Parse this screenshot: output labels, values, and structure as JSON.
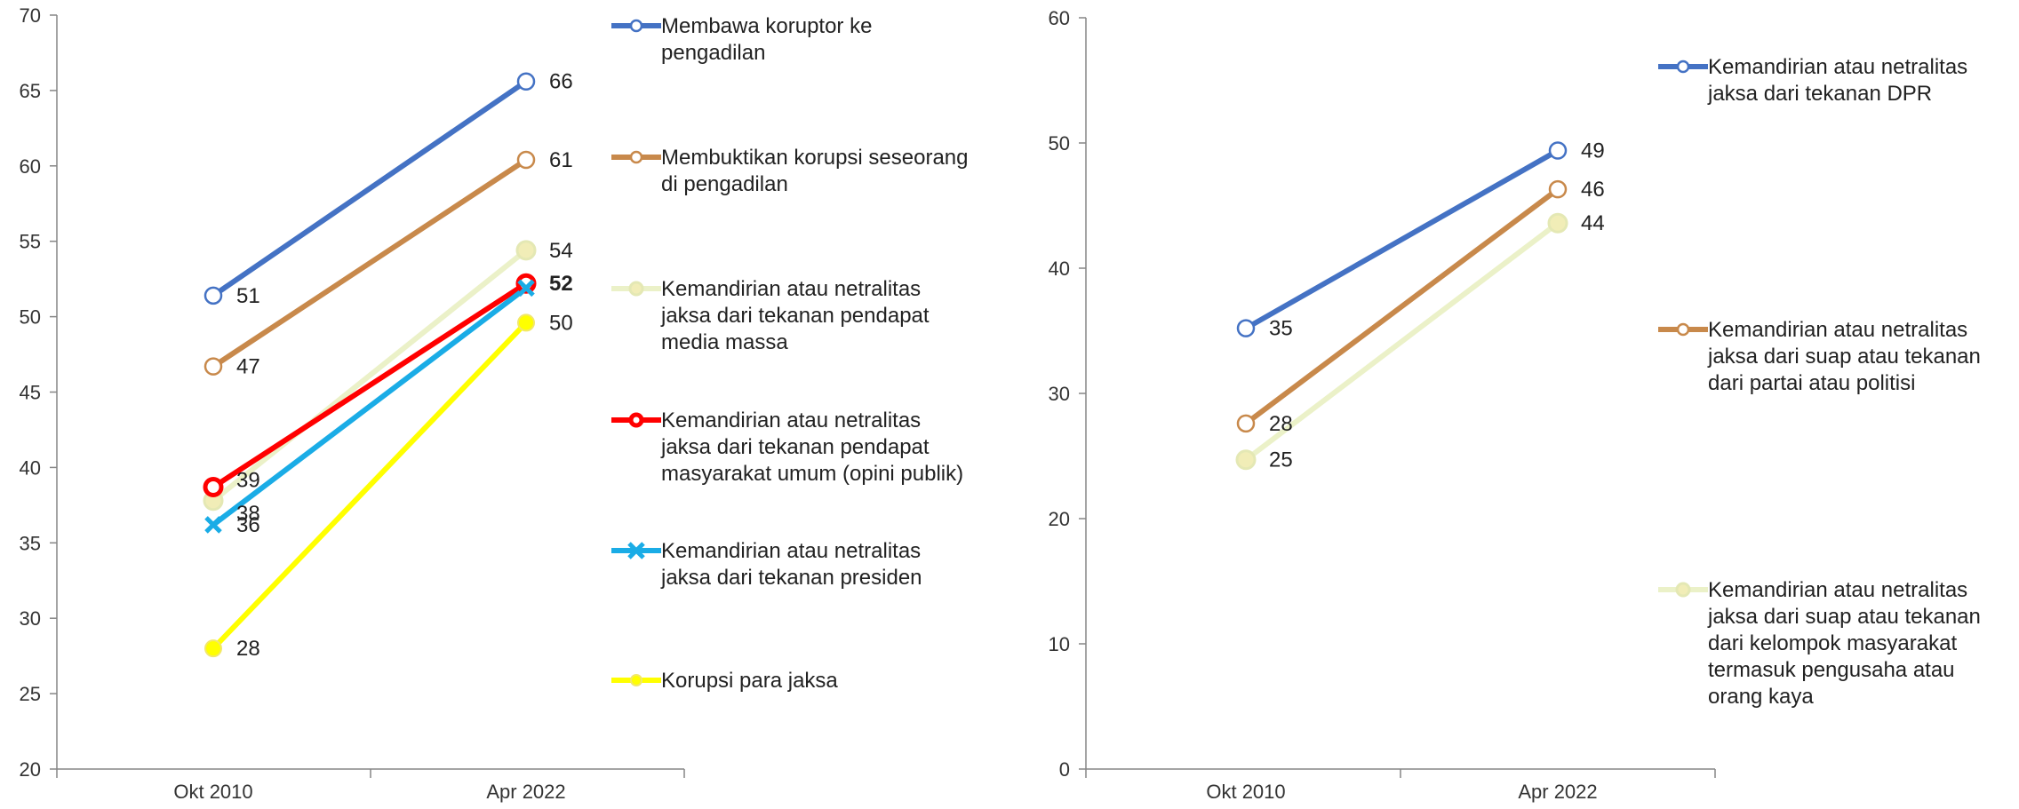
{
  "chart_data": [
    {
      "type": "line",
      "categories": [
        "Okt 2010",
        "Apr 2022"
      ],
      "ylim": [
        20,
        70
      ],
      "yticks": [
        20,
        25,
        30,
        35,
        40,
        45,
        50,
        55,
        60,
        65,
        70
      ],
      "grid": false,
      "legend_position": "right",
      "series": [
        {
          "name": "Membawa koruptor ke pengadilan",
          "values": [
            51,
            66
          ],
          "exact": [
            51.4,
            65.6
          ],
          "labels": [
            "51",
            "66"
          ],
          "color": "#4472C4",
          "marker": "circle-open"
        },
        {
          "name": "Membuktikan korupsi seseorang di pengadilan",
          "values": [
            47,
            61
          ],
          "exact": [
            46.7,
            60.4
          ],
          "labels": [
            "47",
            "61"
          ],
          "color": "#C8894B",
          "marker": "circle-open"
        },
        {
          "name": "Kemandirian atau netralitas jaksa dari tekanan pendapat media massa",
          "values": [
            38,
            54
          ],
          "exact": [
            37.8,
            54.4
          ],
          "labels": [
            "38",
            "54"
          ],
          "color": "#EBF1C8",
          "marker": "circle-filled-light"
        },
        {
          "name": "Kemandirian atau netralitas jaksa dari tekanan pendapat masyarakat umum (opini publik)",
          "values": [
            39,
            52
          ],
          "exact": [
            38.7,
            52.2
          ],
          "labels": [
            "39",
            "52"
          ],
          "color": "#FF0000",
          "marker": "circle-open-thick"
        },
        {
          "name": "Kemandirian atau netralitas jaksa dari tekanan presiden",
          "values": [
            36,
            52
          ],
          "exact": [
            36.2,
            51.9
          ],
          "labels": [
            "36",
            ""
          ],
          "color": "#1AACE6",
          "marker": "x"
        },
        {
          "name": "Korupsi para jaksa",
          "values": [
            28,
            50
          ],
          "exact": [
            28.0,
            49.6
          ],
          "labels": [
            "28",
            "50"
          ],
          "color": "#FFFF00",
          "marker": "circle-filled"
        }
      ],
      "bold_label": "52"
    },
    {
      "type": "line",
      "categories": [
        "Okt 2010",
        "Apr 2022"
      ],
      "ylim": [
        0,
        60
      ],
      "yticks": [
        0,
        10,
        20,
        30,
        40,
        50,
        60
      ],
      "grid": false,
      "legend_position": "right",
      "series": [
        {
          "name": "Kemandirian atau netralitas jaksa dari tekanan DPR",
          "values": [
            35,
            49
          ],
          "exact": [
            35.2,
            49.4
          ],
          "labels": [
            "35",
            "49"
          ],
          "color": "#4472C4",
          "marker": "circle-open"
        },
        {
          "name": "Kemandirian atau netralitas jaksa dari suap atau tekanan dari partai atau politisi",
          "values": [
            28,
            46
          ],
          "exact": [
            27.6,
            46.3
          ],
          "labels": [
            "28",
            "46"
          ],
          "color": "#C8894B",
          "marker": "circle-open"
        },
        {
          "name": "Kemandirian atau netralitas jaksa dari suap atau tekanan dari kelompok masyarakat termasuk pengusaha atau orang kaya",
          "values": [
            25,
            44
          ],
          "exact": [
            24.7,
            43.6
          ],
          "labels": [
            "25",
            "44"
          ],
          "color": "#EBF1C8",
          "marker": "circle-filled-light"
        }
      ]
    }
  ],
  "legend_lines": [
    [
      [
        "Membawa koruptor ke",
        "pengadilan"
      ],
      [
        "Membuktikan korupsi seseorang",
        "di pengadilan"
      ],
      [
        "Kemandirian atau netralitas",
        "jaksa dari tekanan pendapat",
        "media massa"
      ],
      [
        "Kemandirian atau netralitas",
        "jaksa dari tekanan pendapat",
        "masyarakat umum (opini publik)"
      ],
      [
        "Kemandirian atau netralitas",
        "jaksa dari tekanan presiden"
      ],
      [
        "Korupsi para jaksa"
      ]
    ],
    [
      [
        "Kemandirian atau netralitas",
        "jaksa dari tekanan DPR"
      ],
      [
        "Kemandirian atau netralitas",
        "jaksa dari suap atau tekanan",
        "dari partai atau politisi"
      ],
      [
        "Kemandirian atau netralitas",
        "jaksa dari suap atau tekanan",
        "dari kelompok masyarakat",
        "termasuk pengusaha atau",
        "orang kaya"
      ]
    ]
  ]
}
